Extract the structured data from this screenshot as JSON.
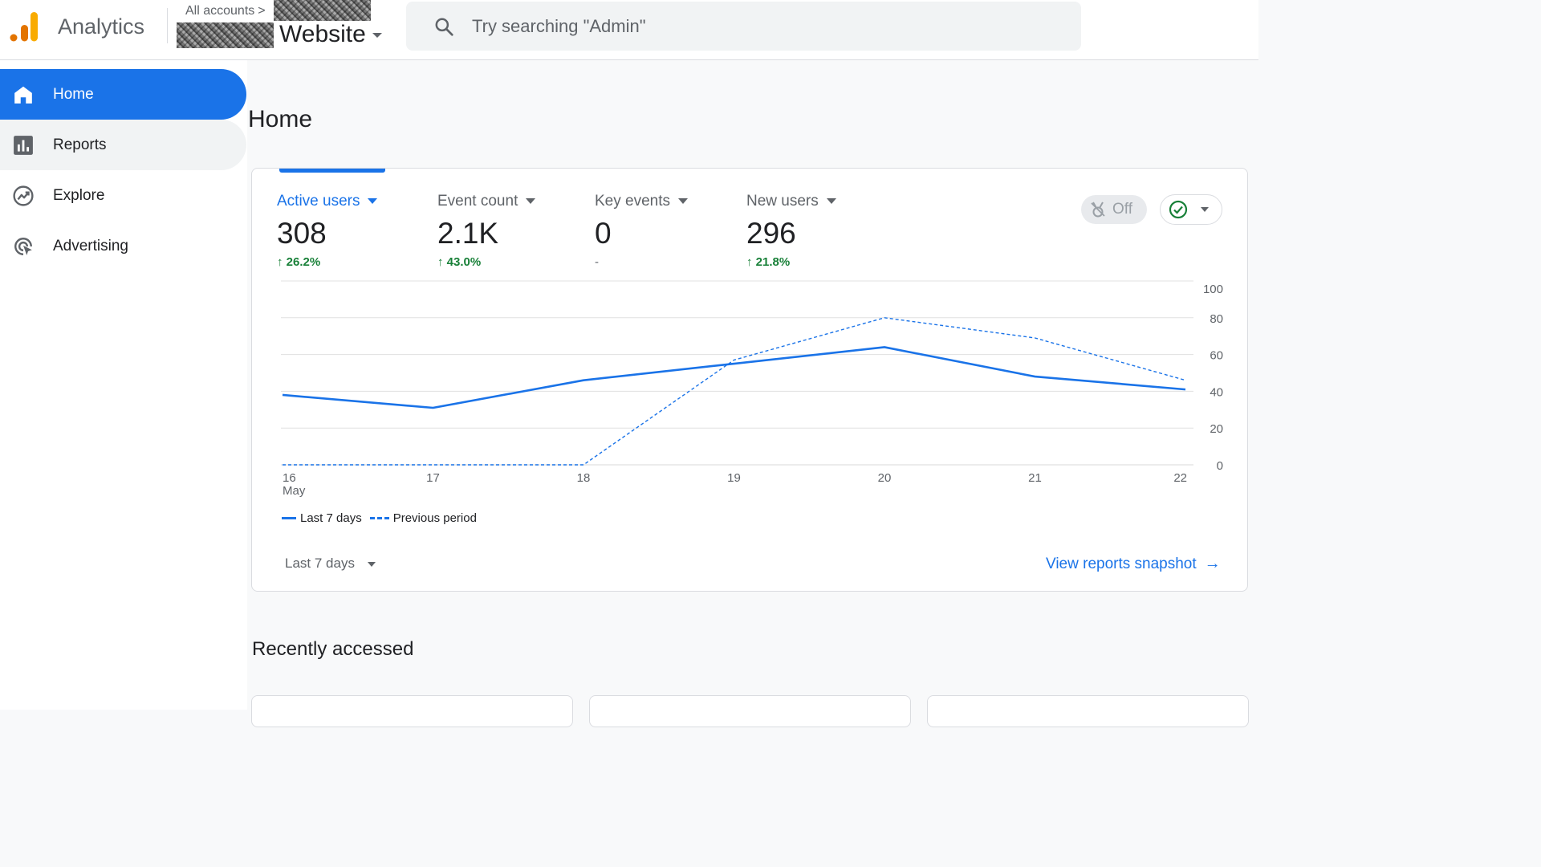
{
  "header": {
    "app_name": "Analytics",
    "breadcrumb": "All accounts",
    "breadcrumb_chevron": ">",
    "property_name": "Website",
    "search_placeholder": "Try searching \"Admin\""
  },
  "sidebar": {
    "items": [
      {
        "label": "Home",
        "icon": "home-icon",
        "active": true
      },
      {
        "label": "Reports",
        "icon": "bar-chart-icon"
      },
      {
        "label": "Explore",
        "icon": "explore-icon"
      },
      {
        "label": "Advertising",
        "icon": "advertising-icon"
      }
    ]
  },
  "main": {
    "page_title": "Home",
    "metrics": [
      {
        "label": "Active users",
        "value": "308",
        "delta": "↑ 26.2%",
        "selected": true
      },
      {
        "label": "Event count",
        "value": "2.1K",
        "delta": "↑ 43.0%"
      },
      {
        "label": "Key events",
        "value": "0",
        "delta": "-"
      },
      {
        "label": "New users",
        "value": "296",
        "delta": "↑ 21.8%"
      }
    ],
    "toggle_label": "Off",
    "legend": {
      "current": "Last 7 days",
      "previous": "Previous period"
    },
    "date_range": "Last 7 days",
    "snapshot_link": "View reports snapshot",
    "snapshot_arrow": "→",
    "recently_accessed": "Recently accessed"
  },
  "colors": {
    "accent": "#1a73e8",
    "positive": "#188038",
    "grid": "#e0e0e0"
  },
  "chart_data": {
    "type": "line",
    "x": [
      "16",
      "17",
      "18",
      "19",
      "20",
      "21",
      "22"
    ],
    "x_sublabel_first": "May",
    "ylim": [
      0,
      100
    ],
    "y_ticks": [
      0,
      20,
      40,
      60,
      80,
      100
    ],
    "series": [
      {
        "name": "Last 7 days",
        "style": "solid",
        "values": [
          38,
          31,
          46,
          55,
          64,
          48,
          41
        ]
      },
      {
        "name": "Previous period",
        "style": "dashed",
        "values": [
          0,
          0,
          0,
          57,
          80,
          69,
          46
        ]
      }
    ],
    "grid": true,
    "legend_position": "bottom-left"
  }
}
